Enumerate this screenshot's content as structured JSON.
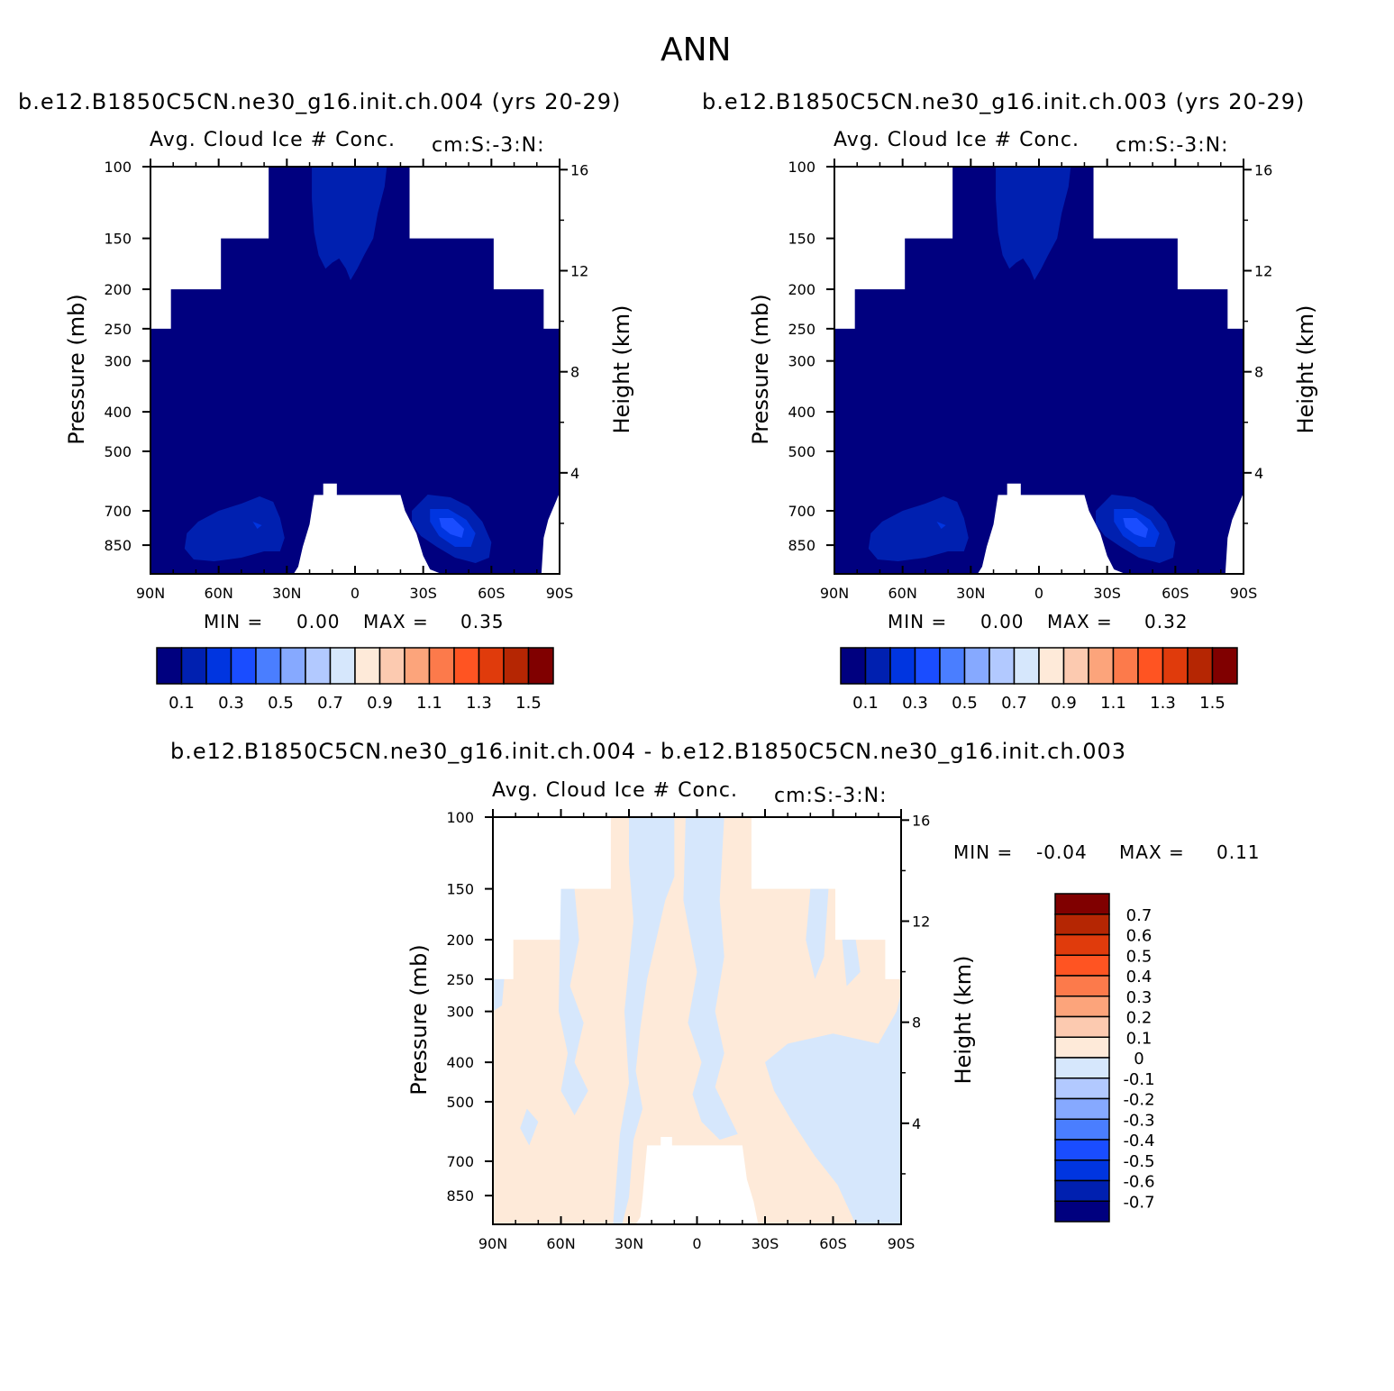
{
  "title": "ANN",
  "panels": [
    {
      "case_title": "b.e12.B1850C5CN.ne30_g16.init.ch.004 (yrs 20-29)",
      "variable": "Avg. Cloud Ice # Conc.",
      "units": "cm:S:-3:N:",
      "min_label": "MIN =",
      "min_value": "0.00",
      "max_label": "MAX =",
      "max_value": "0.35"
    },
    {
      "case_title": "b.e12.B1850C5CN.ne30_g16.init.ch.003 (yrs 20-29)",
      "variable": "Avg. Cloud Ice # Conc.",
      "units": "cm:S:-3:N:",
      "min_label": "MIN =",
      "min_value": "0.00",
      "max_label": "MAX =",
      "max_value": "0.32"
    },
    {
      "case_title": "b.e12.B1850C5CN.ne30_g16.init.ch.004 - b.e12.B1850C5CN.ne30_g16.init.ch.003",
      "variable": "Avg. Cloud Ice # Conc.",
      "units": "cm:S:-3:N:",
      "min_label": "MIN =",
      "min_value": "-0.04",
      "max_label": "MAX =",
      "max_value": "0.11"
    }
  ],
  "chart_data": {
    "type": "heatmap",
    "title": "ANN",
    "xlabel": "",
    "ylabel_left": "Pressure (mb)",
    "ylabel_right": "Height (km)",
    "x_ticks": [
      "90N",
      "60N",
      "30N",
      "0",
      "30S",
      "60S",
      "90S"
    ],
    "x_values": [
      90,
      60,
      30,
      0,
      -30,
      -60,
      -90
    ],
    "y_left_ticks": [
      100,
      150,
      200,
      250,
      300,
      400,
      500,
      700,
      850
    ],
    "y_right_ticks": [
      16,
      12,
      8,
      4
    ],
    "ylim_pressure": [
      1000,
      100
    ],
    "panels": [
      {
        "name": "b.e12.B1850C5CN.ne30_g16.init.ch.004 (yrs 20-29)",
        "min": 0.0,
        "max": 0.35,
        "colorbar_labels": [
          "0.1",
          "0.3",
          "0.5",
          "0.7",
          "0.9",
          "1.1",
          "1.3",
          "1.5"
        ],
        "contour_levels": [
          0.0,
          0.1,
          0.2,
          0.3,
          0.4,
          0.5,
          0.6,
          0.7,
          0.8,
          0.9,
          1.0,
          1.1,
          1.2,
          1.3,
          1.4,
          1.5,
          1.6
        ]
      },
      {
        "name": "b.e12.B1850C5CN.ne30_g16.init.ch.003 (yrs 20-29)",
        "min": 0.0,
        "max": 0.32,
        "colorbar_labels": [
          "0.1",
          "0.3",
          "0.5",
          "0.7",
          "0.9",
          "1.1",
          "1.3",
          "1.5"
        ],
        "contour_levels": [
          0.0,
          0.1,
          0.2,
          0.3,
          0.4,
          0.5,
          0.6,
          0.7,
          0.8,
          0.9,
          1.0,
          1.1,
          1.2,
          1.3,
          1.4,
          1.5,
          1.6
        ]
      },
      {
        "name": "b.e12.B1850C5CN.ne30_g16.init.ch.004 - b.e12.B1850C5CN.ne30_g16.init.ch.003",
        "min": -0.04,
        "max": 0.11,
        "colorbar_labels": [
          "0.7",
          "0.6",
          "0.5",
          "0.4",
          "0.3",
          "0.2",
          "0.1",
          "0",
          "-0.1",
          "-0.2",
          "-0.3",
          "-0.4",
          "-0.5",
          "-0.6",
          "-0.7"
        ],
        "contour_levels": [
          -0.8,
          -0.7,
          -0.6,
          -0.5,
          -0.4,
          -0.3,
          -0.2,
          -0.1,
          0,
          0.1,
          0.2,
          0.3,
          0.4,
          0.5,
          0.6,
          0.7,
          0.8
        ]
      }
    ],
    "colors_abs": [
      "#00007f",
      "#0020b0",
      "#0035e0",
      "#1a4dff",
      "#4a7eff",
      "#86a9ff",
      "#b2c9ff",
      "#d6e7fc",
      "#feead9",
      "#fccab0",
      "#fca47b",
      "#fc7a4b",
      "#ff5422",
      "#e03b0c",
      "#b52603",
      "#800000"
    ],
    "colors_diff": [
      "#800000",
      "#b52603",
      "#e03b0c",
      "#ff5422",
      "#fc7a4b",
      "#fca47b",
      "#fccab0",
      "#feead9",
      "#d6e7fc",
      "#b2c9ff",
      "#86a9ff",
      "#4a7eff",
      "#1a4dff",
      "#0035e0",
      "#0020b0",
      "#00007f"
    ]
  }
}
